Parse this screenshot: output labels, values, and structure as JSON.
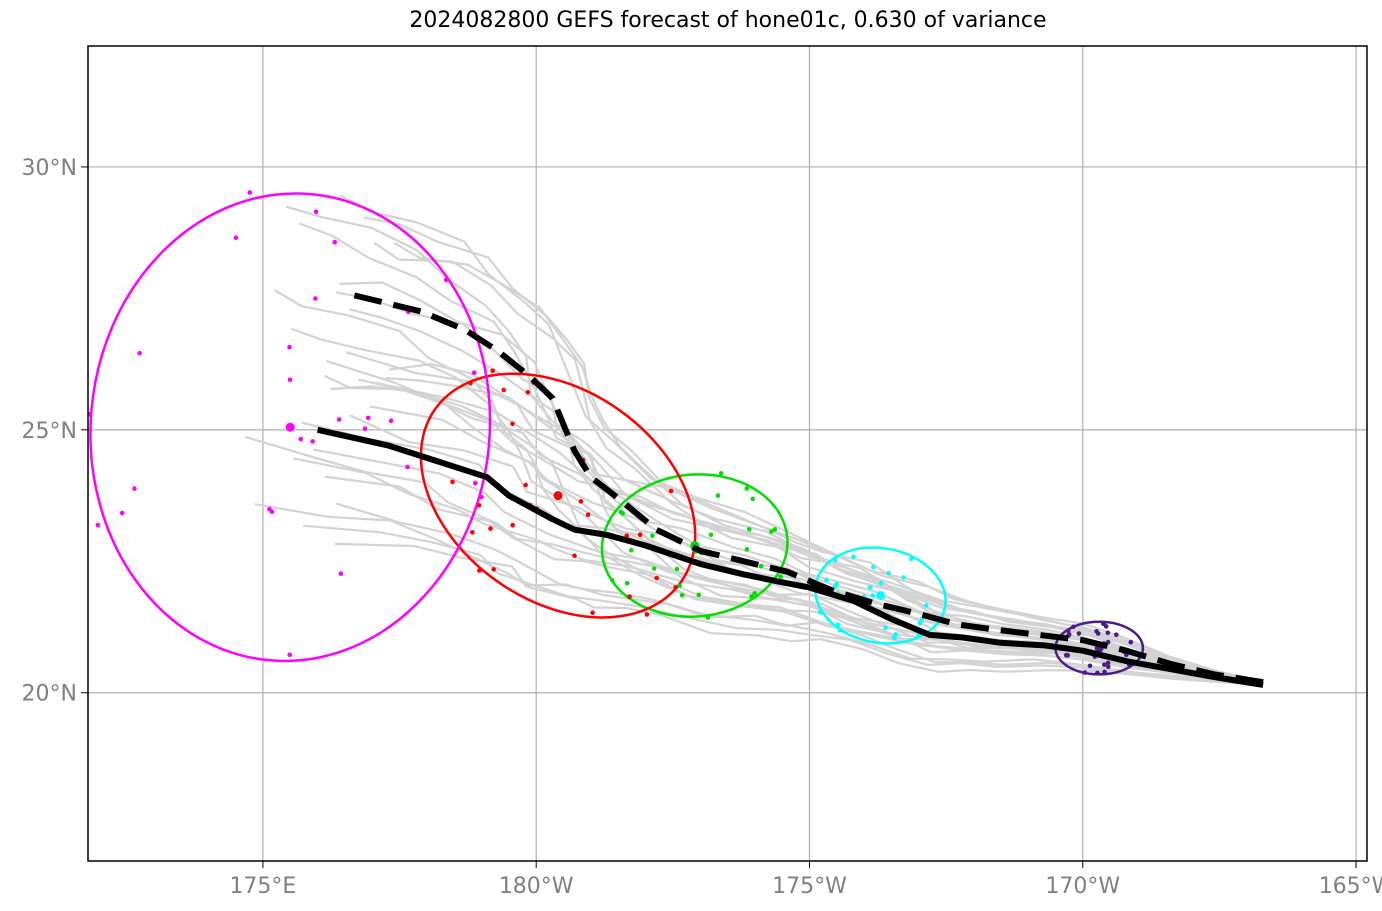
{
  "chart_data": {
    "type": "line",
    "title": "2024082800 GEFS forecast of hone01c, 0.630 of variance",
    "x_axis": {
      "range": [
        171.8,
        195.2
      ],
      "ticks": [
        {
          "value": 175,
          "label": "175°E"
        },
        {
          "value": 180,
          "label": "180°W"
        },
        {
          "value": 185,
          "label": "175°W"
        },
        {
          "value": 190,
          "label": "170°W"
        },
        {
          "value": 195,
          "label": "165°W"
        }
      ]
    },
    "y_axis": {
      "range": [
        16.8,
        32.3
      ],
      "ticks": [
        {
          "value": 20,
          "label": "20°N"
        },
        {
          "value": 25,
          "label": "25°N"
        },
        {
          "value": 30,
          "label": "30°N"
        }
      ]
    },
    "grid": true,
    "colors": {
      "ensemble": "#d3d3d3",
      "mean_track": "#000000",
      "day1": "#4b1a8c",
      "day2": "#00ffff",
      "day3": "#00e000",
      "day4": "#ff0000",
      "day5": "#ff00ff"
    },
    "series": [
      {
        "style": "solid",
        "points": [
          [
            193.3,
            20.15
          ],
          [
            192.4,
            20.3
          ],
          [
            191.6,
            20.45
          ],
          [
            190.8,
            20.6
          ],
          [
            190.0,
            20.8
          ],
          [
            189.3,
            20.9
          ],
          [
            188.5,
            20.95
          ],
          [
            187.8,
            21.05
          ],
          [
            187.2,
            21.1
          ],
          [
            186.5,
            21.4
          ],
          [
            185.8,
            21.75
          ],
          [
            185.0,
            22.0
          ],
          [
            184.5,
            22.1
          ],
          [
            183.8,
            22.25
          ],
          [
            183.0,
            22.45
          ],
          [
            182.0,
            22.8
          ],
          [
            181.3,
            23.0
          ],
          [
            180.7,
            23.1
          ],
          [
            180.3,
            23.3
          ],
          [
            179.5,
            23.75
          ],
          [
            179.1,
            24.1
          ],
          [
            178.2,
            24.4
          ],
          [
            177.3,
            24.7
          ],
          [
            176.0,
            25.0
          ]
        ]
      },
      {
        "style": "dashed",
        "points": [
          [
            193.3,
            20.2
          ],
          [
            192.4,
            20.35
          ],
          [
            191.6,
            20.55
          ],
          [
            190.8,
            20.8
          ],
          [
            190.0,
            21.0
          ],
          [
            189.2,
            21.1
          ],
          [
            188.4,
            21.2
          ],
          [
            187.7,
            21.3
          ],
          [
            187.0,
            21.5
          ],
          [
            186.2,
            21.7
          ],
          [
            185.4,
            21.95
          ],
          [
            184.6,
            22.3
          ],
          [
            183.8,
            22.5
          ],
          [
            183.0,
            22.7
          ],
          [
            182.2,
            23.1
          ],
          [
            181.5,
            23.7
          ],
          [
            181.0,
            24.1
          ],
          [
            180.7,
            24.6
          ],
          [
            180.5,
            25.1
          ],
          [
            180.3,
            25.6
          ],
          [
            179.9,
            26.0
          ],
          [
            179.3,
            26.5
          ],
          [
            178.7,
            26.9
          ],
          [
            177.9,
            27.25
          ],
          [
            177.1,
            27.45
          ],
          [
            176.5,
            27.6
          ]
        ]
      }
    ],
    "uncertainty_ellipses": [
      {
        "day": "day1",
        "center": [
          190.3,
          20.85
        ],
        "radii": [
          0.8,
          0.5
        ]
      },
      {
        "day": "day2",
        "center": [
          186.3,
          21.85
        ],
        "radii": [
          1.2,
          0.9
        ]
      },
      {
        "day": "day3",
        "center": [
          182.9,
          22.8
        ],
        "radii": [
          1.7,
          1.35
        ]
      },
      {
        "day": "day4",
        "center": [
          180.4,
          23.75
        ],
        "radii": [
          2.75,
          2.0
        ]
      },
      {
        "day": "day5",
        "center": [
          175.5,
          25.05
        ],
        "radii": [
          3.65,
          4.45
        ]
      }
    ]
  }
}
